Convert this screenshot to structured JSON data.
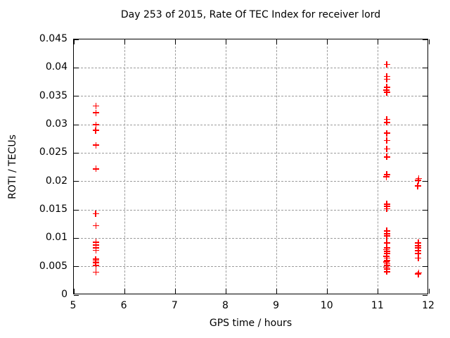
{
  "chart_data": {
    "type": "scatter",
    "title": "Day 253 of 2015, Rate Of TEC Index for receiver lord",
    "xlabel": "GPS time / hours",
    "ylabel": "ROTI / TECUs",
    "xlim": [
      5,
      12
    ],
    "ylim": [
      0,
      0.045
    ],
    "xticks": {
      "values": [
        5,
        6,
        7,
        8,
        9,
        10,
        11,
        12
      ],
      "labels": [
        "5",
        "6",
        "7",
        "8",
        "9",
        "10",
        "11",
        "12"
      ]
    },
    "yticks": {
      "values": [
        0,
        0.005,
        0.01,
        0.015,
        0.02,
        0.025,
        0.03,
        0.035,
        0.04,
        0.045
      ],
      "labels": [
        "0",
        "0.005",
        "0.01",
        "0.015",
        "0.02",
        "0.025",
        "0.03",
        "0.035",
        "0.04",
        "0.045"
      ]
    },
    "grid": true,
    "legend": "none",
    "marker": {
      "shape": "plus",
      "color": "#ff0000"
    },
    "series": [
      {
        "name": "ROTI",
        "points": [
          [
            5.44,
            0.0333
          ],
          [
            5.44,
            0.0321
          ],
          [
            5.44,
            0.03
          ],
          [
            5.43,
            0.029
          ],
          [
            5.44,
            0.0264
          ],
          [
            5.44,
            0.0222
          ],
          [
            5.43,
            0.0143
          ],
          [
            5.44,
            0.0122
          ],
          [
            5.44,
            0.0093
          ],
          [
            5.44,
            0.0088
          ],
          [
            5.44,
            0.0083
          ],
          [
            5.44,
            0.0079
          ],
          [
            5.43,
            0.0063
          ],
          [
            5.44,
            0.006
          ],
          [
            5.43,
            0.0057
          ],
          [
            5.44,
            0.0052
          ],
          [
            5.44,
            0.004
          ],
          [
            11.17,
            0.0406
          ],
          [
            11.17,
            0.0385
          ],
          [
            11.17,
            0.038
          ],
          [
            11.17,
            0.0366
          ],
          [
            11.16,
            0.0361
          ],
          [
            11.17,
            0.0357
          ],
          [
            11.17,
            0.0309
          ],
          [
            11.17,
            0.0304
          ],
          [
            11.17,
            0.0285
          ],
          [
            11.17,
            0.0272
          ],
          [
            11.17,
            0.0257
          ],
          [
            11.17,
            0.0243
          ],
          [
            11.17,
            0.0212
          ],
          [
            11.16,
            0.0208
          ],
          [
            11.17,
            0.016
          ],
          [
            11.17,
            0.0156
          ],
          [
            11.17,
            0.0152
          ],
          [
            11.17,
            0.0113
          ],
          [
            11.17,
            0.0108
          ],
          [
            11.17,
            0.0104
          ],
          [
            11.17,
            0.0092
          ],
          [
            11.17,
            0.0083
          ],
          [
            11.16,
            0.008
          ],
          [
            11.17,
            0.0077
          ],
          [
            11.17,
            0.0073
          ],
          [
            11.16,
            0.0068
          ],
          [
            11.17,
            0.0065
          ],
          [
            11.17,
            0.0061
          ],
          [
            11.16,
            0.0058
          ],
          [
            11.17,
            0.0055
          ],
          [
            11.17,
            0.0052
          ],
          [
            11.16,
            0.0049
          ],
          [
            11.17,
            0.0046
          ],
          [
            11.17,
            0.0041
          ],
          [
            11.8,
            0.0205
          ],
          [
            11.79,
            0.0202
          ],
          [
            11.78,
            0.0192
          ],
          [
            11.79,
            0.0092
          ],
          [
            11.79,
            0.0087
          ],
          [
            11.79,
            0.0083
          ],
          [
            11.79,
            0.0078
          ],
          [
            11.79,
            0.0073
          ],
          [
            11.79,
            0.0065
          ],
          [
            11.8,
            0.0039
          ],
          [
            11.79,
            0.0037
          ]
        ]
      }
    ]
  }
}
